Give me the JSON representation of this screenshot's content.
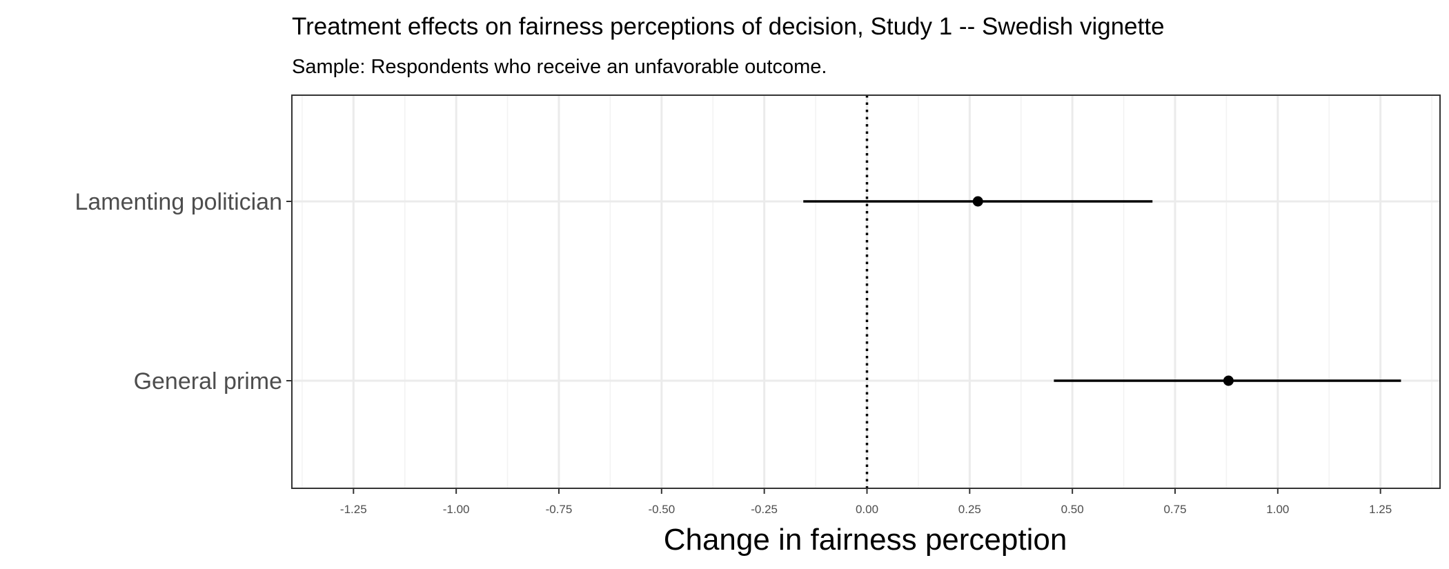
{
  "chart_data": {
    "type": "scatter",
    "title": "Treatment effects on fairness perceptions of decision, Study 1 -- Swedish vignette",
    "subtitle": "Sample: Respondents who receive an unfavorable outcome.",
    "xlabel": "Change in fairness perception",
    "ylabel": "",
    "xlim": [
      -1.4,
      1.395
    ],
    "x_ticks": [
      -1.25,
      -1.0,
      -0.75,
      -0.5,
      -0.25,
      0.0,
      0.25,
      0.5,
      0.75,
      1.0,
      1.25
    ],
    "x_tick_labels": [
      "-1.25",
      "-1.00",
      "-0.75",
      "-0.50",
      "-0.25",
      "0.00",
      "0.25",
      "0.50",
      "0.75",
      "1.00",
      "1.25"
    ],
    "reference_line": {
      "x": 0.0,
      "style": "dotted"
    },
    "grid": true,
    "legend": "none",
    "categories": [
      "Lamenting politician",
      "General prime"
    ],
    "points": [
      {
        "category": "Lamenting politician",
        "estimate": 0.27,
        "ci_low": -0.155,
        "ci_high": 0.695
      },
      {
        "category": "General prime",
        "estimate": 0.88,
        "ci_low": 0.455,
        "ci_high": 1.3
      }
    ],
    "colors": {
      "point": "#000000",
      "grid_major": "#ebebeb",
      "grid_minor": "#f2f2f2",
      "panel_border": "#333333",
      "tick_text": "#4d4d4d"
    }
  }
}
